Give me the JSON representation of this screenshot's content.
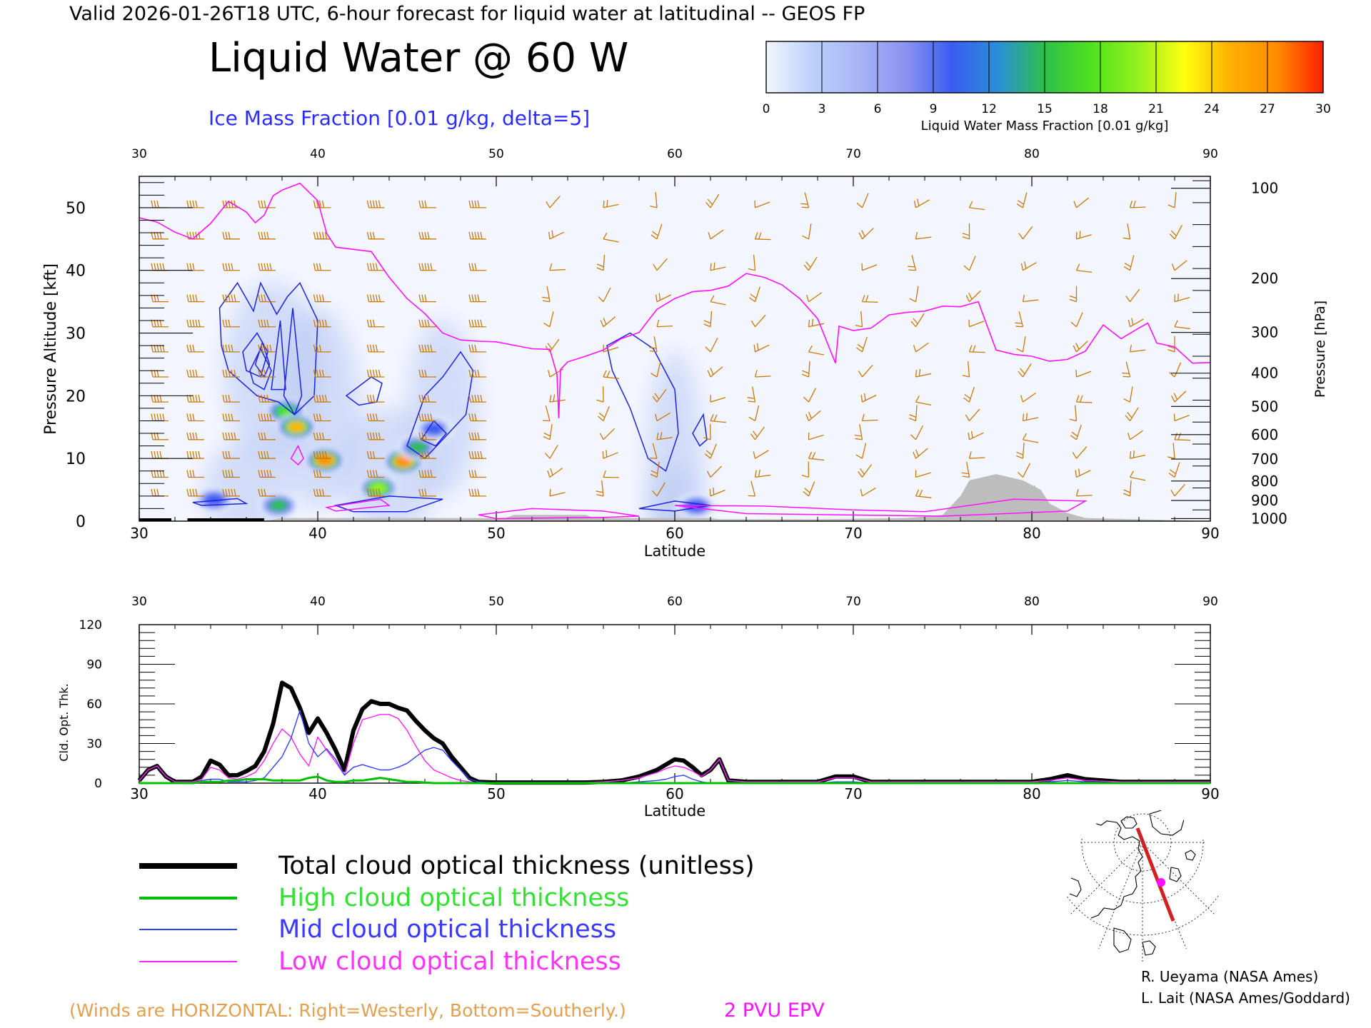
{
  "header": {
    "valid_line": "Valid 2026-01-26T18 UTC, 6-hour forecast for liquid water at latitudinal -- GEOS FP",
    "title": "Liquid Water @ 60 W",
    "subtitle": "Ice Mass Fraction [0.01 g/kg, delta=5]"
  },
  "colorbar": {
    "label": "Liquid Water Mass Fraction [0.01 g/kg]",
    "ticks": [
      "0",
      "3",
      "6",
      "9",
      "12",
      "15",
      "18",
      "21",
      "24",
      "27",
      "30"
    ],
    "colors": [
      "#f4f6ff",
      "#bcd0fb",
      "#a7b5f6",
      "#8b93f0",
      "#3a5cf0",
      "#2a8fd8",
      "#2fbf4a",
      "#4fe21e",
      "#93f01e",
      "#ffff10",
      "#ffb000",
      "#ff8c00",
      "#ff2000"
    ]
  },
  "chart_data": [
    {
      "type": "heatmap",
      "title": "Liquid Water @ 60 W",
      "xlabel": "Latitude",
      "ylabel": "Pressure Altitude [kft]",
      "ylabel_right": "Pressure [hPa]",
      "xlim": [
        30,
        90
      ],
      "ylim": [
        0,
        55
      ],
      "x_ticks": [
        "30",
        "40",
        "50",
        "60",
        "70",
        "80",
        "90"
      ],
      "y_ticks": [
        "0",
        "10",
        "20",
        "30",
        "40",
        "50"
      ],
      "pressure_ticks": [
        {
          "label": "100",
          "kft": 53.1
        },
        {
          "label": "200",
          "kft": 38.7
        },
        {
          "label": "300",
          "kft": 30.1
        },
        {
          "label": "400",
          "kft": 23.6
        },
        {
          "label": "500",
          "kft": 18.3
        },
        {
          "label": "600",
          "kft": 13.8
        },
        {
          "label": "700",
          "kft": 9.9
        },
        {
          "label": "800",
          "kft": 6.4
        },
        {
          "label": "900",
          "kft": 3.3
        },
        {
          "label": "1000",
          "kft": 0.4
        }
      ],
      "liquid_water_blobs": [
        {
          "lat": 38.2,
          "kft": 17.5,
          "value": 18
        },
        {
          "lat": 38.8,
          "kft": 15.0,
          "value": 24
        },
        {
          "lat": 40.4,
          "kft": 9.7,
          "value": 27
        },
        {
          "lat": 43.4,
          "kft": 5.3,
          "value": 20
        },
        {
          "lat": 44.8,
          "kft": 9.5,
          "value": 27
        },
        {
          "lat": 45.6,
          "kft": 11.8,
          "value": 14
        },
        {
          "lat": 46.5,
          "kft": 14.7,
          "value": 9
        },
        {
          "lat": 34.2,
          "kft": 3.4,
          "value": 11
        },
        {
          "lat": 37.8,
          "kft": 2.5,
          "value": 14
        },
        {
          "lat": 61.2,
          "kft": 2.4,
          "value": 10
        }
      ],
      "epv_2pvu_kft": [
        [
          30,
          48.4
        ],
        [
          31,
          47.7
        ],
        [
          32,
          46.1
        ],
        [
          33,
          45.0
        ],
        [
          34,
          47.5
        ],
        [
          35,
          51.0
        ],
        [
          36,
          49.3
        ],
        [
          36.5,
          47.6
        ],
        [
          37,
          48.8
        ],
        [
          37.5,
          51.9
        ],
        [
          38,
          52.8
        ],
        [
          39,
          53.9
        ],
        [
          40,
          51.1
        ],
        [
          40.5,
          45.9
        ],
        [
          41,
          43.7
        ],
        [
          43,
          43.0
        ],
        [
          44,
          38.9
        ],
        [
          45,
          35.5
        ],
        [
          46,
          33.1
        ],
        [
          47,
          30.0
        ],
        [
          48,
          28.9
        ],
        [
          49,
          28.7
        ],
        [
          50,
          28.6
        ],
        [
          52,
          27.5
        ],
        [
          53,
          27.4
        ],
        [
          53.4,
          23.4
        ],
        [
          53.5,
          16.4
        ],
        [
          53.6,
          24.2
        ],
        [
          54,
          25.4
        ],
        [
          55,
          26.3
        ],
        [
          56,
          27.3
        ],
        [
          57,
          29.1
        ],
        [
          58,
          30.1
        ],
        [
          59,
          33.8
        ],
        [
          60,
          35.5
        ],
        [
          61,
          36.6
        ],
        [
          62,
          36.8
        ],
        [
          63,
          37.5
        ],
        [
          64,
          39.5
        ],
        [
          65,
          38.9
        ],
        [
          66,
          37.7
        ],
        [
          67,
          35.5
        ],
        [
          68,
          32.3
        ],
        [
          69,
          25.2
        ],
        [
          69.2,
          31.1
        ],
        [
          70,
          30.4
        ],
        [
          71,
          30.8
        ],
        [
          72,
          32.9
        ],
        [
          73,
          33.3
        ],
        [
          74,
          33.5
        ],
        [
          75,
          34.3
        ],
        [
          76,
          34.2
        ],
        [
          77,
          35.0
        ],
        [
          78,
          27.3
        ],
        [
          79,
          26.6
        ],
        [
          80,
          26.3
        ],
        [
          81,
          25.5
        ],
        [
          82,
          25.8
        ],
        [
          83,
          27.1
        ],
        [
          84,
          31.3
        ],
        [
          85,
          29.1
        ],
        [
          86,
          30.8
        ],
        [
          86.5,
          31.6
        ],
        [
          87,
          28.4
        ],
        [
          88,
          27.8
        ],
        [
          89,
          25.2
        ],
        [
          90,
          25.3
        ]
      ],
      "terrain_kft": [
        [
          30,
          0
        ],
        [
          37,
          0
        ],
        [
          38,
          0.5
        ],
        [
          41,
          0.5
        ],
        [
          47,
          0.5
        ],
        [
          50.5,
          0.5
        ],
        [
          51,
          1.0
        ],
        [
          55,
          1.0
        ],
        [
          55.5,
          0.5
        ],
        [
          62,
          0.5
        ],
        [
          62.5,
          0.3
        ],
        [
          68,
          0.3
        ],
        [
          73,
          0.5
        ],
        [
          75,
          1.0
        ],
        [
          76,
          4.0
        ],
        [
          76.5,
          6.5
        ],
        [
          78,
          7.5
        ],
        [
          79.5,
          6.5
        ],
        [
          80.5,
          5.0
        ],
        [
          81,
          2.8
        ],
        [
          82,
          1.3
        ],
        [
          83,
          0.5
        ],
        [
          90,
          0
        ]
      ]
    },
    {
      "type": "line",
      "xlabel": "Latitude",
      "ylabel": "Cld. Opt. Thk.",
      "xlim": [
        30,
        90
      ],
      "ylim": [
        0,
        120
      ],
      "x_ticks": [
        "30",
        "40",
        "50",
        "60",
        "70",
        "80",
        "90"
      ],
      "y_ticks": [
        "0",
        "30",
        "60",
        "90",
        "120"
      ],
      "x": [
        30,
        30.5,
        31,
        31.5,
        32,
        32.5,
        33,
        33.5,
        34,
        34.5,
        35,
        35.5,
        36,
        36.5,
        37,
        37.5,
        38,
        38.5,
        39,
        39.5,
        40,
        40.5,
        41,
        41.5,
        42,
        42.5,
        43,
        43.5,
        44,
        44.5,
        45,
        45.5,
        46,
        46.5,
        47,
        47.5,
        48,
        48.5,
        49,
        50,
        52,
        55,
        56,
        57,
        58,
        59,
        59.5,
        60,
        60.5,
        61,
        61.5,
        62,
        62.5,
        63,
        64,
        66,
        68,
        69,
        70,
        71,
        75,
        80,
        81,
        82,
        83,
        85,
        90
      ],
      "series": [
        {
          "name": "Total cloud optical thickness (unitless)",
          "color": "#000000",
          "values": [
            2,
            10,
            13,
            5,
            1,
            1,
            1,
            5,
            17,
            14,
            6,
            6,
            9,
            13,
            24,
            45,
            76,
            72,
            57,
            38,
            49,
            38,
            25,
            10,
            40,
            56,
            62,
            60,
            60,
            57,
            55,
            47,
            40,
            34,
            30,
            20,
            12,
            4,
            1,
            0.5,
            0.5,
            0.5,
            1,
            2,
            5,
            10,
            14,
            18,
            17,
            12,
            6,
            10,
            18,
            2,
            1,
            1,
            1,
            5,
            5,
            1,
            1,
            1,
            3,
            6,
            3,
            1,
            1
          ]
        },
        {
          "name": "High cloud optical thickness",
          "color": "#00c000",
          "values": [
            0,
            0,
            0,
            0,
            0,
            0,
            0,
            1,
            1,
            1,
            2,
            2,
            3,
            3,
            3,
            2,
            2,
            2,
            2,
            4,
            5,
            2,
            1,
            1,
            2,
            2,
            3,
            4,
            3,
            2,
            1,
            1,
            0.5,
            0,
            0,
            0,
            0,
            0,
            0,
            0,
            0,
            0,
            0,
            0,
            0,
            0,
            0,
            0,
            0,
            0,
            0,
            0,
            0,
            0,
            0,
            0,
            0,
            0,
            0,
            0,
            0,
            0,
            0,
            0,
            0,
            0,
            0
          ]
        },
        {
          "name": "Mid cloud optical thickness",
          "color": "#3040ff",
          "values": [
            0,
            0,
            0,
            0,
            0,
            0,
            0,
            2,
            3,
            3,
            1,
            1,
            1,
            2,
            4,
            12,
            20,
            34,
            55,
            30,
            20,
            26,
            18,
            6,
            12,
            14,
            12,
            10,
            10,
            12,
            15,
            20,
            25,
            27,
            25,
            17,
            10,
            3,
            1,
            0,
            0,
            0,
            0,
            0,
            1,
            2,
            3,
            5,
            6,
            3,
            1,
            0,
            0,
            0,
            0,
            0,
            0,
            1,
            1,
            0,
            0,
            0,
            1,
            2,
            1,
            0,
            0
          ]
        },
        {
          "name": "Low cloud optical thickness",
          "color": "#ff20ff",
          "values": [
            2,
            10,
            13,
            5,
            1,
            1,
            1,
            3,
            12,
            10,
            4,
            3,
            5,
            8,
            17,
            30,
            41,
            35,
            22,
            13,
            35,
            25,
            16,
            6,
            30,
            48,
            50,
            52,
            52,
            49,
            40,
            28,
            17,
            10,
            7,
            4,
            2,
            1,
            0,
            0.5,
            0.5,
            0.5,
            1,
            2,
            4,
            8,
            11,
            13,
            12,
            9,
            5,
            10,
            18,
            2,
            1,
            1,
            1,
            4,
            4,
            1,
            1,
            1,
            2,
            4,
            2,
            1,
            1
          ]
        }
      ]
    }
  ],
  "legend": {
    "total_label": "Total cloud optical thickness (unitless)",
    "high_label": "High cloud optical thickness",
    "mid_label": "Mid cloud optical thickness",
    "low_label": "Low cloud optical thickness"
  },
  "footer": {
    "winds_note": "(Winds are HORIZONTAL: Right=Westerly, Bottom=Southerly.)",
    "epv_label": "2 PVU EPV",
    "credit_1": "R. Ueyama (NASA Ames)",
    "credit_2": "L. Lait (NASA Ames/Goddard)"
  },
  "colors": {
    "ice_contour": "#1a22e0",
    "epv": "#ff10ff",
    "wind_barb": "#c8780a",
    "winds_note": "#e0a050",
    "terrain": "#bdbdbd"
  }
}
